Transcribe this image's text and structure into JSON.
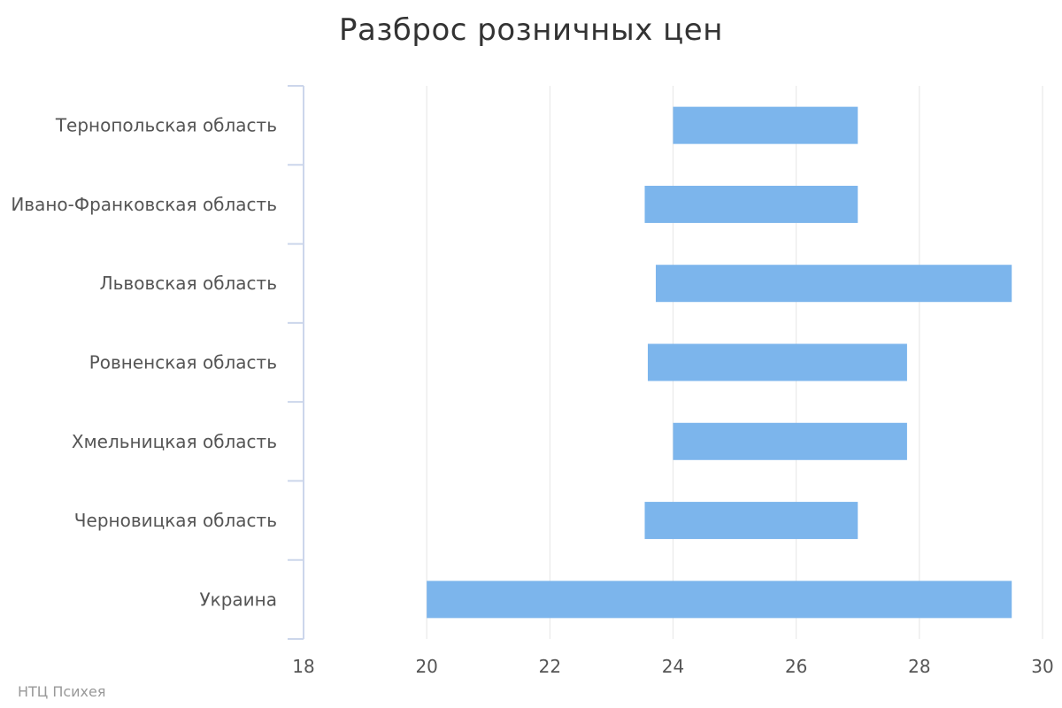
{
  "chart_data": {
    "type": "bar",
    "orientation": "horizontal",
    "title": "Разброс розничных цен",
    "categories": [
      "Тернопольская область",
      "Ивано-Франковская область",
      "Львовская область",
      "Ровненская область",
      "Хмельницкая область",
      "Черновицкая область",
      "Украина"
    ],
    "ranges": [
      [
        24.0,
        27.0
      ],
      [
        23.54,
        27.0
      ],
      [
        23.72,
        29.5
      ],
      [
        23.59,
        27.8
      ],
      [
        24.0,
        27.8
      ],
      [
        23.54,
        27.0
      ],
      [
        20.0,
        29.5
      ]
    ],
    "xlim": [
      18,
      30
    ],
    "xticks": [
      18,
      20,
      22,
      24,
      26,
      28,
      30
    ],
    "xlabel": "",
    "ylabel": "",
    "grid": true,
    "legend": "none",
    "bar_color": "#7cb5ec",
    "credits": "НТЦ Психея"
  }
}
